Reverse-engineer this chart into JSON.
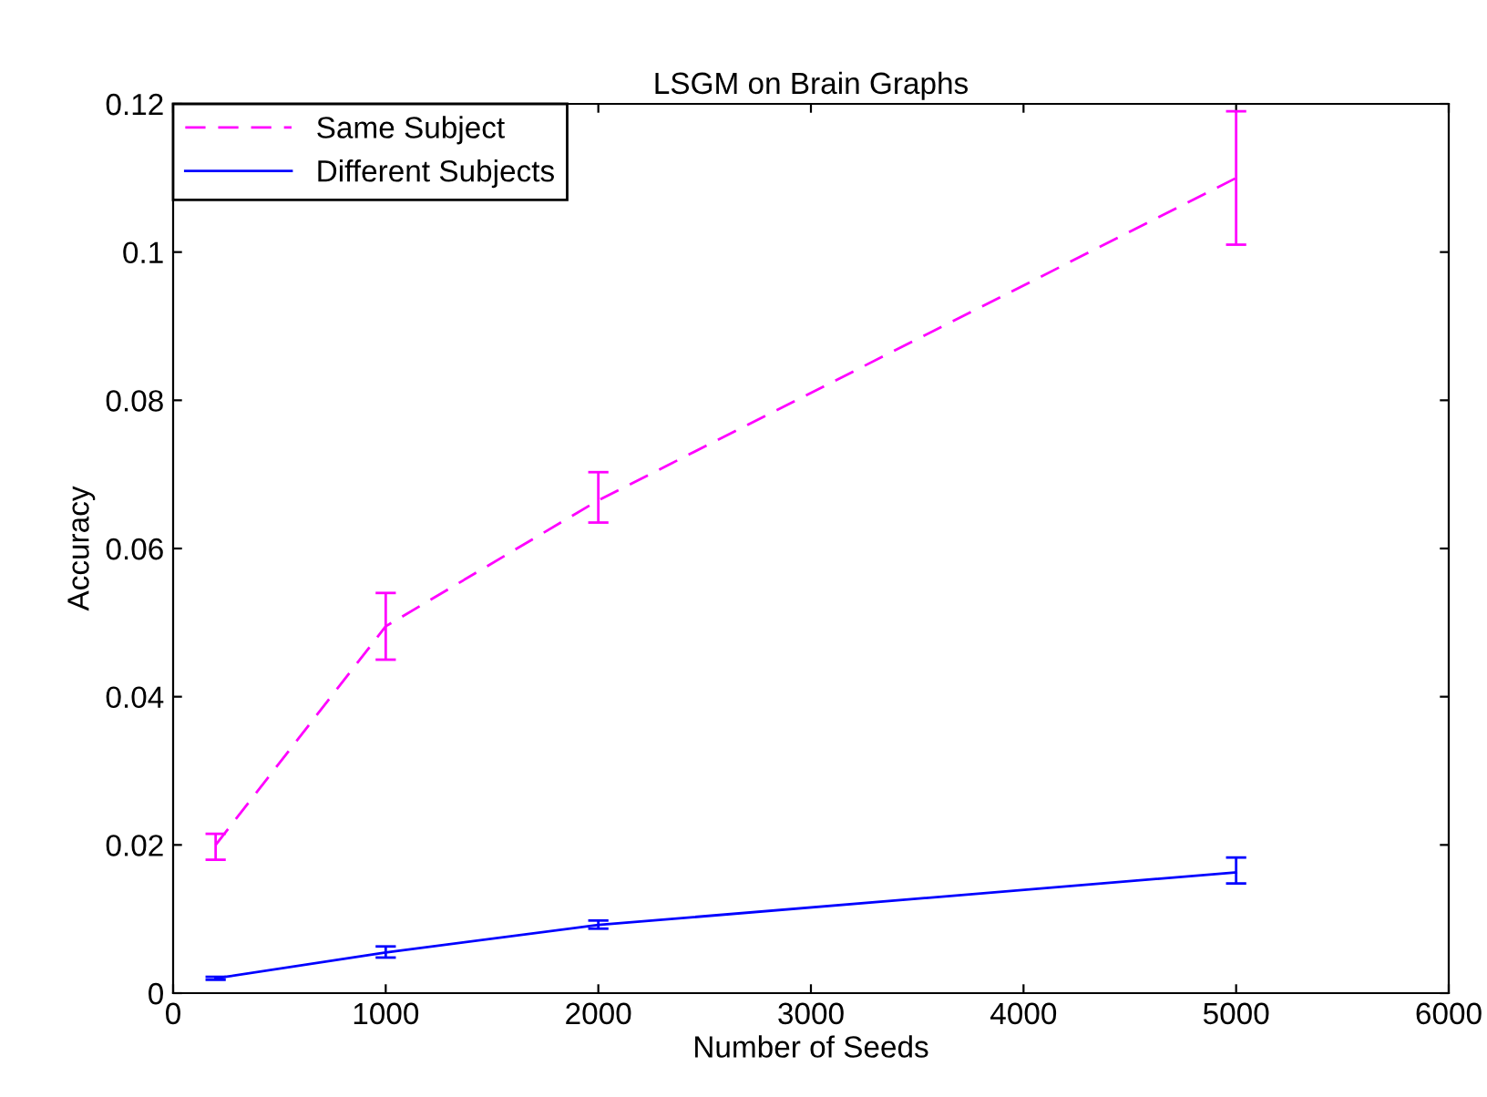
{
  "chart_data": {
    "type": "line",
    "title": "LSGM on Brain Graphs",
    "xlabel": "Number of Seeds",
    "ylabel": "Accuracy",
    "x": [
      200,
      1000,
      2000,
      5000
    ],
    "series": [
      {
        "name": "Same Subject",
        "color": "#ff00ff",
        "line_style": "dashed",
        "values": [
          0.02,
          0.0495,
          0.0665,
          0.11
        ],
        "errors": [
          [
            0.018,
            0.0215
          ],
          [
            0.045,
            0.054
          ],
          [
            0.0635,
            0.0703
          ],
          [
            0.101,
            0.119
          ]
        ]
      },
      {
        "name": "Different Subjects",
        "color": "#0000ff",
        "line_style": "solid",
        "values": [
          0.002,
          0.0055,
          0.0092,
          0.0163
        ],
        "errors": [
          [
            0.0018,
            0.0022
          ],
          [
            0.0048,
            0.0063
          ],
          [
            0.0087,
            0.0098
          ],
          [
            0.0148,
            0.0183
          ]
        ]
      }
    ],
    "xlim": [
      0,
      6000
    ],
    "xticks": [
      0,
      1000,
      2000,
      3000,
      4000,
      5000,
      6000
    ],
    "ylim": [
      0,
      0.12
    ],
    "yticks": [
      0,
      0.02,
      0.04,
      0.06,
      0.08,
      0.1,
      0.12
    ],
    "grid": false,
    "legend": "top left",
    "marker": "none"
  }
}
